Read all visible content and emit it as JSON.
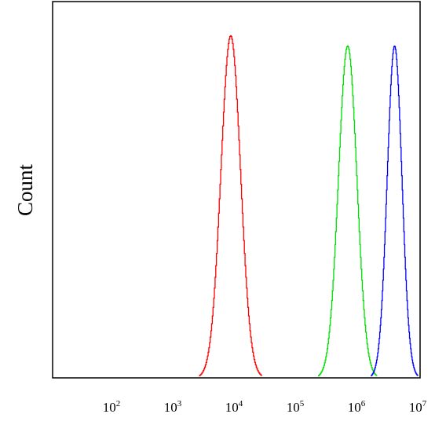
{
  "chart_data": {
    "type": "line",
    "title": "",
    "xlabel": "",
    "ylabel": "Count",
    "x_scale": "log",
    "xlim": [
      10,
      10000000
    ],
    "ylim": [
      0,
      1.1
    ],
    "x_ticks": [
      {
        "value": 100,
        "base": "10",
        "exp": "2"
      },
      {
        "value": 1000,
        "base": "10",
        "exp": "3"
      },
      {
        "value": 10000,
        "base": "10",
        "exp": "4"
      },
      {
        "value": 100000,
        "base": "10",
        "exp": "5"
      },
      {
        "value": 1000000,
        "base": "10",
        "exp": "6"
      },
      {
        "value": 10000000,
        "base": "10",
        "exp": "7"
      }
    ],
    "grid": false,
    "legend": "none",
    "series": [
      {
        "color": "#ff0000",
        "peak_x": 8000,
        "peak_y": 1.0,
        "log_width": 0.16
      },
      {
        "color": "#00dd00",
        "peak_x": 650000,
        "peak_y": 0.97,
        "log_width": 0.15
      },
      {
        "color": "#0000ff",
        "peak_x": 3800000,
        "peak_y": 0.97,
        "log_width": 0.12
      }
    ]
  }
}
